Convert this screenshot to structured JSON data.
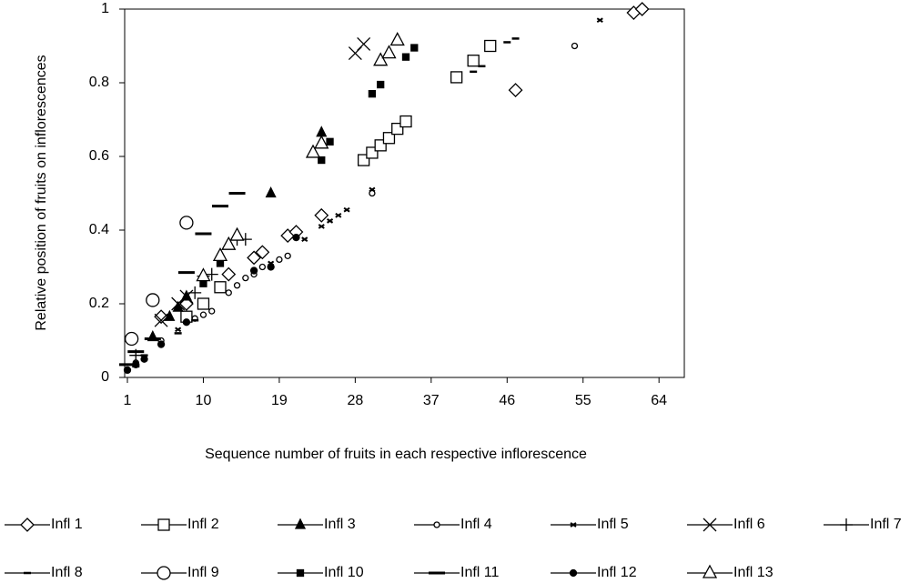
{
  "chart_data": {
    "type": "scatter",
    "x_label": "Sequence number of fruits in each respective inflorescence",
    "y_label": "Relative position of fruits on inflorescences",
    "xlim": [
      1,
      67
    ],
    "xticks": [
      1,
      10,
      19,
      28,
      37,
      46,
      55,
      64
    ],
    "ylim": [
      0,
      1
    ],
    "yticks": [
      0,
      0.2,
      0.4,
      0.6,
      0.8,
      1
    ],
    "color": "#000000",
    "legend": "bottom",
    "series": [
      {
        "name": "Infl 1",
        "marker": "diamond-open",
        "x": [
          5,
          8,
          13,
          16,
          17,
          20,
          21,
          24,
          47,
          61,
          62
        ],
        "values": [
          0.165,
          0.2,
          0.28,
          0.325,
          0.34,
          0.385,
          0.395,
          0.44,
          0.78,
          0.99,
          1.0
        ]
      },
      {
        "name": "Infl 2",
        "marker": "square-open",
        "x": [
          8,
          10,
          12,
          29,
          30,
          31,
          32,
          33,
          34,
          40,
          42,
          44
        ],
        "values": [
          0.165,
          0.2,
          0.245,
          0.59,
          0.61,
          0.63,
          0.65,
          0.675,
          0.695,
          0.815,
          0.86,
          0.9
        ]
      },
      {
        "name": "Infl 3",
        "marker": "triangle-filled",
        "x": [
          4,
          6,
          7,
          8,
          18,
          24
        ],
        "values": [
          0.11,
          0.165,
          0.19,
          0.22,
          0.5,
          0.665
        ]
      },
      {
        "name": "Infl 4",
        "marker": "circle-small",
        "x": [
          2,
          5,
          8,
          9,
          10,
          11,
          13,
          14,
          15,
          16,
          17,
          19,
          20,
          30,
          54
        ],
        "values": [
          0.04,
          0.1,
          0.15,
          0.16,
          0.17,
          0.18,
          0.23,
          0.25,
          0.27,
          0.28,
          0.3,
          0.32,
          0.33,
          0.5,
          0.9
        ]
      },
      {
        "name": "Infl 5",
        "marker": "x-small",
        "x": [
          7,
          18,
          22,
          24,
          25,
          26,
          27,
          30,
          57
        ],
        "values": [
          0.13,
          0.31,
          0.375,
          0.41,
          0.425,
          0.44,
          0.455,
          0.51,
          0.97
        ]
      },
      {
        "name": "Infl 6",
        "marker": "x",
        "x": [
          5,
          7,
          8,
          28,
          29
        ],
        "values": [
          0.155,
          0.2,
          0.22,
          0.88,
          0.905
        ]
      },
      {
        "name": "Infl 7",
        "marker": "plus",
        "x": [
          2,
          9,
          10,
          11,
          14,
          15
        ],
        "values": [
          0.06,
          0.23,
          0.275,
          0.28,
          0.375,
          0.375
        ]
      },
      {
        "name": "Infl 8",
        "marker": "dash-small",
        "x": [
          2,
          3,
          7,
          9,
          42,
          43,
          46,
          47
        ],
        "values": [
          0.03,
          0.06,
          0.12,
          0.155,
          0.83,
          0.845,
          0.91,
          0.92
        ]
      },
      {
        "name": "Infl 9",
        "marker": "circle-big",
        "x": [
          1.5,
          4,
          8
        ],
        "values": [
          0.105,
          0.21,
          0.42
        ]
      },
      {
        "name": "Infl 10",
        "marker": "square-filled",
        "x": [
          10,
          12,
          24,
          25,
          30,
          31,
          34,
          35
        ],
        "values": [
          0.255,
          0.31,
          0.59,
          0.64,
          0.77,
          0.795,
          0.87,
          0.895
        ]
      },
      {
        "name": "Infl 11",
        "marker": "dash-thick",
        "x": [
          1,
          2,
          4,
          8,
          10,
          12,
          14
        ],
        "values": [
          0.035,
          0.07,
          0.105,
          0.285,
          0.39,
          0.465,
          0.5
        ]
      },
      {
        "name": "Infl 12",
        "marker": "circle-filled",
        "x": [
          1,
          2,
          3,
          5,
          8,
          16,
          18,
          21
        ],
        "values": [
          0.02,
          0.035,
          0.05,
          0.09,
          0.15,
          0.29,
          0.3,
          0.38
        ]
      },
      {
        "name": "Infl 13",
        "marker": "triangle-open",
        "x": [
          10,
          12,
          13,
          14,
          23,
          24,
          31,
          32,
          33
        ],
        "values": [
          0.275,
          0.33,
          0.36,
          0.385,
          0.61,
          0.635,
          0.86,
          0.88,
          0.915
        ]
      }
    ]
  }
}
